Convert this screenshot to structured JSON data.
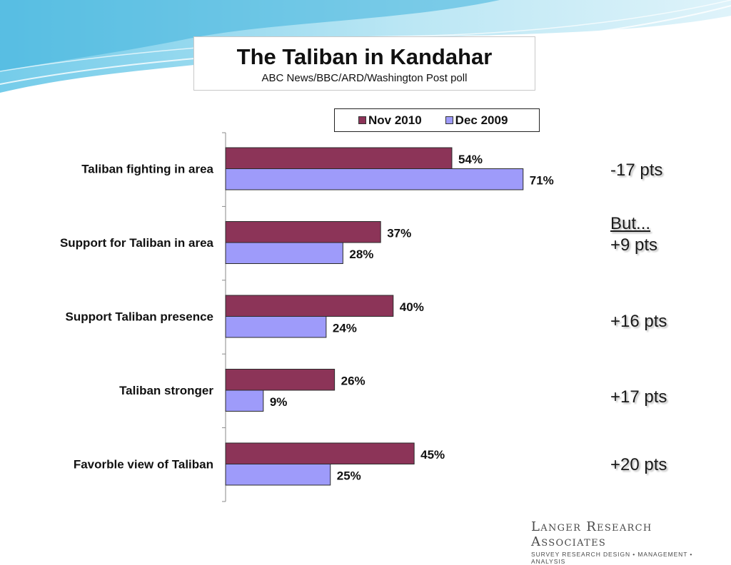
{
  "header": {
    "title": "The Taliban in Kandahar",
    "subtitle": "ABC News/BBC/ARD/Washington Post poll"
  },
  "legend": {
    "items": [
      {
        "label": "Nov 2010",
        "color": "#8c3458"
      },
      {
        "label": "Dec 2009",
        "color": "#9e9bfa"
      }
    ]
  },
  "chart_data": {
    "type": "bar",
    "orientation": "horizontal",
    "title": "The Taliban in Kandahar",
    "subtitle": "ABC News/BBC/ARD/Washington Post poll",
    "categories": [
      "Taliban fighting in area",
      "Support for Taliban in area",
      "Support Taliban presence",
      "Taliban stronger",
      "Favorble view of Taliban"
    ],
    "series": [
      {
        "name": "Nov 2010",
        "values": [
          54,
          37,
          40,
          26,
          45
        ],
        "labels": [
          "54%",
          "37%",
          "40%",
          "26%",
          "45%"
        ],
        "color": "#8c3458"
      },
      {
        "name": "Dec 2009",
        "values": [
          71,
          28,
          24,
          9,
          25
        ],
        "labels": [
          "71%",
          "28%",
          "24%",
          "9%",
          "25%"
        ],
        "color": "#9e9bfa"
      }
    ],
    "xlim": [
      0,
      100
    ],
    "xlabel": "",
    "ylabel": "",
    "grid": false,
    "legend": "top"
  },
  "annotations": [
    {
      "line1": "-17 pts",
      "line2": ""
    },
    {
      "line1": "But...",
      "line2": "+9 pts"
    },
    {
      "line1": "+16 pts",
      "line2": ""
    },
    {
      "line1": "+17 pts",
      "line2": ""
    },
    {
      "line1": "+20 pts",
      "line2": ""
    }
  ],
  "logo": {
    "name": "Langer Research Associates",
    "tagline": "SURVEY RESEARCH DESIGN • MANAGEMENT • ANALYSIS"
  }
}
